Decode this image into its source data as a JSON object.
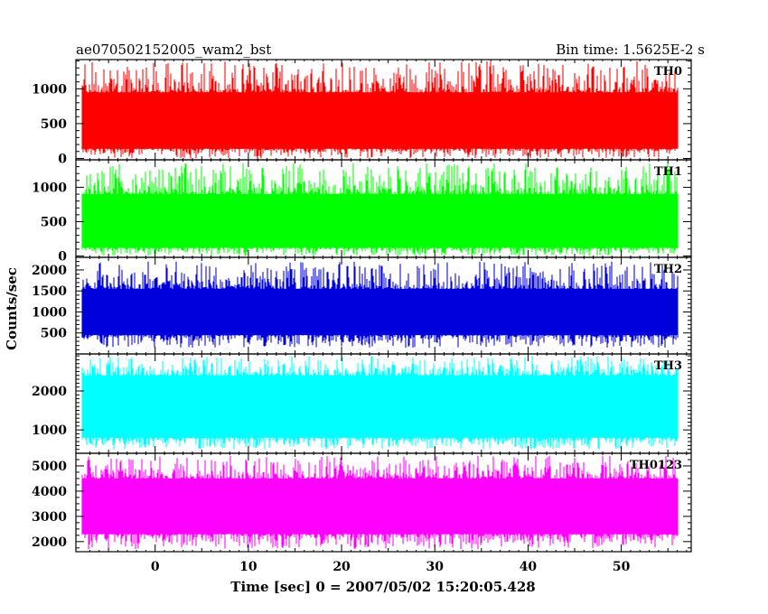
{
  "header": {
    "title": "ae070502152005_wam2_bst",
    "bin_time": "Bin time: 1.5625E-2 s"
  },
  "chart_data": {
    "type": "line",
    "title": "ae070502152005_wam2_bst",
    "subtitle": "Bin time: 1.5625E-2 s",
    "xlabel": "Time [sec] 0 = 2007/05/02 15:20:05.428",
    "ylabel": "Counts/sec",
    "xlim": [
      -8.5,
      57.5
    ],
    "x_data_range": [
      -7.8,
      56.0
    ],
    "x_ticks": [
      0,
      10,
      20,
      30,
      40,
      50
    ],
    "x_tick_labels": [
      "0",
      "10",
      "20",
      "30",
      "40",
      "50"
    ],
    "grid": false,
    "series": [
      {
        "name": "TH0",
        "color": "#ff0000",
        "ylim": [
          -20,
          1420
        ],
        "y_ticks": [
          0,
          500,
          1000
        ],
        "y_tick_labels": [
          "0",
          "500",
          "1000"
        ],
        "typical_range": [
          140,
          950
        ],
        "extreme_range": [
          0,
          1400
        ],
        "mean": 540
      },
      {
        "name": "TH1",
        "color": "#00ff00",
        "ylim": [
          -20,
          1400
        ],
        "y_ticks": [
          0,
          500,
          1000
        ],
        "y_tick_labels": [
          "0",
          "500",
          "1000"
        ],
        "typical_range": [
          120,
          900
        ],
        "extreme_range": [
          0,
          1350
        ],
        "mean": 520
      },
      {
        "name": "TH2",
        "color": "#0000dd",
        "ylim": [
          0,
          2300
        ],
        "y_ticks": [
          500,
          1000,
          1500,
          2000
        ],
        "y_tick_labels": [
          "500",
          "1000",
          "1500",
          "2000"
        ],
        "typical_range": [
          450,
          1550
        ],
        "extreme_range": [
          150,
          2200
        ],
        "mean": 950
      },
      {
        "name": "TH3",
        "color": "#00ffff",
        "ylim": [
          400,
          2950
        ],
        "y_ticks": [
          1000,
          2000
        ],
        "y_tick_labels": [
          "1000",
          "2000"
        ],
        "typical_range": [
          800,
          2400
        ],
        "extreme_range": [
          500,
          2900
        ],
        "mean": 1550
      },
      {
        "name": "TH0123",
        "color": "#ff00ff",
        "ylim": [
          1600,
          5500
        ],
        "y_ticks": [
          2000,
          3000,
          4000,
          5000
        ],
        "y_tick_labels": [
          "2000",
          "3000",
          "4000",
          "5000"
        ],
        "typical_range": [
          2300,
          4500
        ],
        "extreme_range": [
          1700,
          5400
        ],
        "mean": 3450
      }
    ]
  }
}
